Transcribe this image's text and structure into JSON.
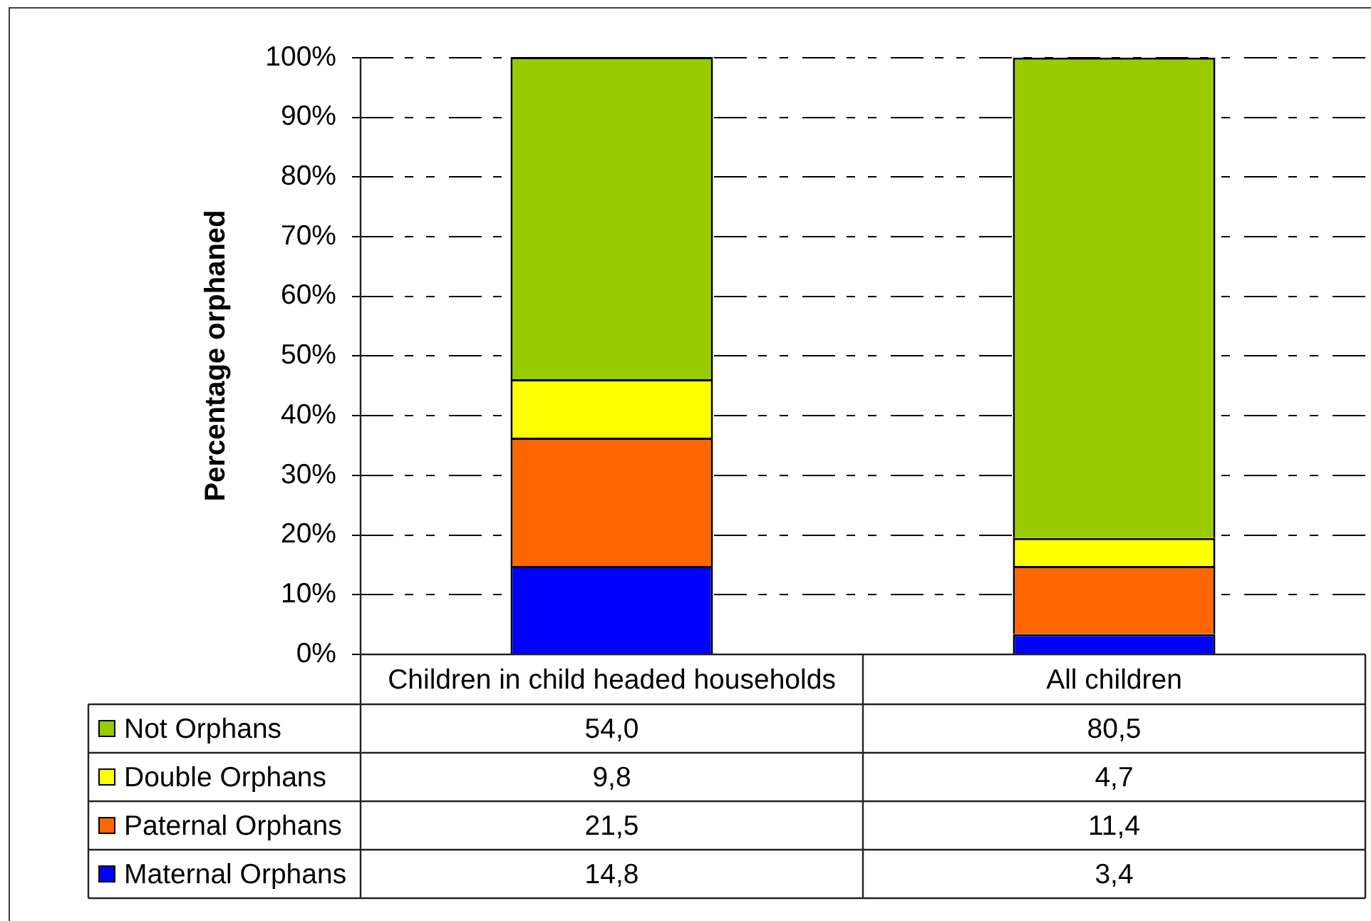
{
  "chart_data": {
    "type": "bar",
    "ylabel": "Percentage orphaned",
    "categories": [
      "Children in child headed households",
      "All children"
    ],
    "stacked": true,
    "series": [
      {
        "name": "Maternal Orphans",
        "color": "#0000ff",
        "values": [
          14.8,
          3.4
        ],
        "value_labels": [
          "14,8",
          "3,4"
        ]
      },
      {
        "name": "Paternal Orphans",
        "color": "#ff6600",
        "values": [
          21.5,
          11.4
        ],
        "value_labels": [
          "21,5",
          "11,4"
        ]
      },
      {
        "name": "Double Orphans",
        "color": "#ffff00",
        "values": [
          9.8,
          4.7
        ],
        "value_labels": [
          "9,8",
          "4,7"
        ]
      },
      {
        "name": "Not Orphans",
        "color": "#99cc00",
        "values": [
          54.0,
          80.5
        ],
        "value_labels": [
          "54,0",
          "80,5"
        ]
      }
    ],
    "ylim": [
      0,
      100.1
    ],
    "yticks": [
      {
        "value": 0,
        "label": "0%"
      },
      {
        "value": 10,
        "label": "10%"
      },
      {
        "value": 20,
        "label": "20%"
      },
      {
        "value": 30,
        "label": "30%"
      },
      {
        "value": 40,
        "label": "40%"
      },
      {
        "value": 50,
        "label": "50%"
      },
      {
        "value": 60,
        "label": "60%"
      },
      {
        "value": 70,
        "label": "70%"
      },
      {
        "value": 80,
        "label": "80%"
      },
      {
        "value": 90,
        "label": "90%"
      },
      {
        "value": 100,
        "label": "100%"
      }
    ],
    "grid": "y",
    "legend": "bottom"
  }
}
